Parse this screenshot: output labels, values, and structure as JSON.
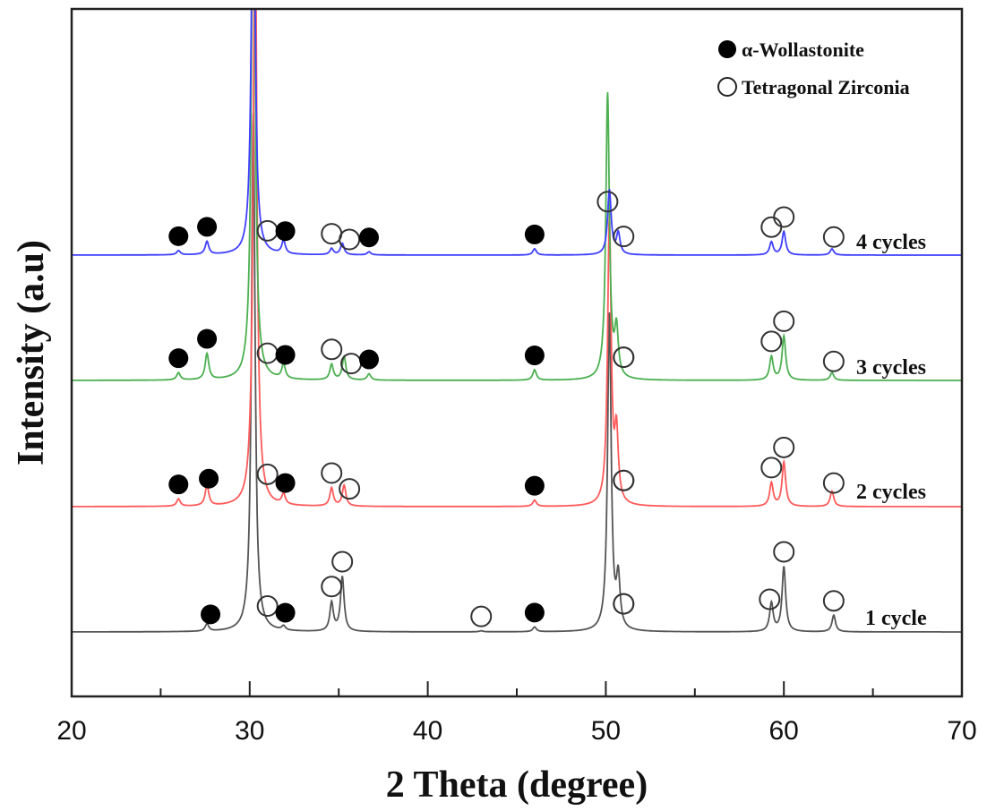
{
  "chart_data": {
    "type": "line",
    "title": "",
    "xlabel": "2 Theta (degree)",
    "ylabel": "Intensity (a.u)",
    "xlim": [
      20,
      70
    ],
    "x_major_ticks": [
      20,
      30,
      40,
      50,
      60,
      70
    ],
    "x_minor_ticks": [
      25,
      35,
      45,
      55,
      65
    ],
    "y_ticks_shown": false,
    "grid": false,
    "legend": {
      "placement": "top-right",
      "entries": [
        {
          "marker": "filled-circle",
          "label": "α-Wollastonite"
        },
        {
          "marker": "open-circle",
          "label": "Tetragonal Zirconia"
        }
      ]
    },
    "series": [
      {
        "name": "1 cycle",
        "color": "#555555",
        "offset": 0,
        "peaks": [
          {
            "x": 27.6,
            "height": 0.14
          },
          {
            "x": 30.2,
            "height": 10.0
          },
          {
            "x": 31.9,
            "height": 0.08
          },
          {
            "x": 34.6,
            "height": 0.55
          },
          {
            "x": 35.2,
            "height": 1.05
          },
          {
            "x": 43.0,
            "height": 0.02
          },
          {
            "x": 46.0,
            "height": 0.09
          },
          {
            "x": 50.2,
            "height": 6.1
          },
          {
            "x": 50.7,
            "height": 0.95
          },
          {
            "x": 59.3,
            "height": 0.55
          },
          {
            "x": 60.0,
            "height": 1.25
          },
          {
            "x": 62.8,
            "height": 0.32
          }
        ],
        "markers": [
          {
            "x": 27.8,
            "phase": "wollastonite"
          },
          {
            "x": 31.0,
            "phase": "zirconia"
          },
          {
            "x": 32.0,
            "phase": "wollastonite"
          },
          {
            "x": 34.6,
            "phase": "zirconia"
          },
          {
            "x": 35.2,
            "phase": "zirconia"
          },
          {
            "x": 43.0,
            "phase": "zirconia"
          },
          {
            "x": 46.0,
            "phase": "wollastonite"
          },
          {
            "x": 51.0,
            "phase": "zirconia"
          },
          {
            "x": 51.0,
            "phase": "zirconia"
          },
          {
            "x": 59.2,
            "phase": "zirconia"
          },
          {
            "x": 60.0,
            "phase": "zirconia"
          },
          {
            "x": 62.8,
            "phase": "zirconia"
          }
        ]
      },
      {
        "name": "2 cycles",
        "color": "#ff5a5a",
        "offset": 1,
        "peaks": [
          {
            "x": 26.0,
            "height": 0.14
          },
          {
            "x": 27.6,
            "height": 0.4
          },
          {
            "x": 30.3,
            "height": 12.0
          },
          {
            "x": 31.9,
            "height": 0.2
          },
          {
            "x": 34.6,
            "height": 0.35
          },
          {
            "x": 35.3,
            "height": 0.4
          },
          {
            "x": 46.0,
            "height": 0.12
          },
          {
            "x": 50.2,
            "height": 5.5
          },
          {
            "x": 50.6,
            "height": 1.3
          },
          {
            "x": 59.3,
            "height": 0.45
          },
          {
            "x": 60.0,
            "height": 0.85
          },
          {
            "x": 62.7,
            "height": 0.3
          }
        ],
        "markers": [
          {
            "x": 26.0,
            "phase": "wollastonite"
          },
          {
            "x": 27.7,
            "phase": "wollastonite"
          },
          {
            "x": 31.0,
            "phase": "zirconia"
          },
          {
            "x": 32.0,
            "phase": "wollastonite"
          },
          {
            "x": 34.6,
            "phase": "zirconia"
          },
          {
            "x": 35.6,
            "phase": "zirconia"
          },
          {
            "x": 46.0,
            "phase": "wollastonite"
          },
          {
            "x": 51.0,
            "phase": "zirconia"
          },
          {
            "x": 51.0,
            "phase": "zirconia"
          },
          {
            "x": 59.3,
            "phase": "zirconia"
          },
          {
            "x": 60.0,
            "phase": "zirconia"
          },
          {
            "x": 62.8,
            "phase": "zirconia"
          }
        ]
      },
      {
        "name": "3 cycles",
        "color": "#4caf50",
        "offset": 2,
        "peaks": [
          {
            "x": 26.0,
            "height": 0.14
          },
          {
            "x": 27.6,
            "height": 0.5
          },
          {
            "x": 30.2,
            "height": 11.0
          },
          {
            "x": 31.9,
            "height": 0.28
          },
          {
            "x": 34.6,
            "height": 0.3
          },
          {
            "x": 35.3,
            "height": 0.45
          },
          {
            "x": 36.7,
            "height": 0.12
          },
          {
            "x": 46.0,
            "height": 0.2
          },
          {
            "x": 50.1,
            "height": 5.5
          },
          {
            "x": 50.6,
            "height": 0.9
          },
          {
            "x": 59.3,
            "height": 0.45
          },
          {
            "x": 60.0,
            "height": 0.85
          },
          {
            "x": 62.7,
            "height": 0.15
          }
        ],
        "markers": [
          {
            "x": 26.0,
            "phase": "wollastonite"
          },
          {
            "x": 27.6,
            "phase": "wollastonite"
          },
          {
            "x": 31.0,
            "phase": "zirconia"
          },
          {
            "x": 32.0,
            "phase": "wollastonite"
          },
          {
            "x": 34.6,
            "phase": "zirconia"
          },
          {
            "x": 35.7,
            "phase": "zirconia"
          },
          {
            "x": 36.7,
            "phase": "wollastonite"
          },
          {
            "x": 46.0,
            "phase": "wollastonite"
          },
          {
            "x": 51.0,
            "phase": "zirconia"
          },
          {
            "x": 51.0,
            "phase": "zirconia"
          },
          {
            "x": 59.3,
            "phase": "zirconia"
          },
          {
            "x": 60.0,
            "phase": "zirconia"
          },
          {
            "x": 62.8,
            "phase": "zirconia"
          }
        ]
      },
      {
        "name": "4 cycles",
        "color": "#3f3fff",
        "offset": 3,
        "peaks": [
          {
            "x": 26.0,
            "height": 0.08
          },
          {
            "x": 27.6,
            "height": 0.25
          },
          {
            "x": 30.2,
            "height": 8.5
          },
          {
            "x": 31.9,
            "height": 0.25
          },
          {
            "x": 34.6,
            "height": 0.12
          },
          {
            "x": 35.2,
            "height": 0.22
          },
          {
            "x": 36.7,
            "height": 0.06
          },
          {
            "x": 46.0,
            "height": 0.12
          },
          {
            "x": 50.2,
            "height": 1.25
          },
          {
            "x": 50.7,
            "height": 0.4
          },
          {
            "x": 59.3,
            "height": 0.25
          },
          {
            "x": 60.0,
            "height": 0.45
          },
          {
            "x": 62.7,
            "height": 0.12
          }
        ],
        "markers": [
          {
            "x": 26.0,
            "phase": "wollastonite"
          },
          {
            "x": 27.6,
            "phase": "wollastonite"
          },
          {
            "x": 31.0,
            "phase": "zirconia"
          },
          {
            "x": 32.0,
            "phase": "wollastonite"
          },
          {
            "x": 34.6,
            "phase": "zirconia"
          },
          {
            "x": 35.6,
            "phase": "zirconia"
          },
          {
            "x": 36.7,
            "phase": "wollastonite"
          },
          {
            "x": 46.0,
            "phase": "wollastonite"
          },
          {
            "x": 50.1,
            "phase": "zirconia"
          },
          {
            "x": 51.0,
            "phase": "zirconia"
          },
          {
            "x": 59.3,
            "phase": "zirconia"
          },
          {
            "x": 60.0,
            "phase": "zirconia"
          },
          {
            "x": 62.8,
            "phase": "zirconia"
          }
        ]
      }
    ]
  }
}
